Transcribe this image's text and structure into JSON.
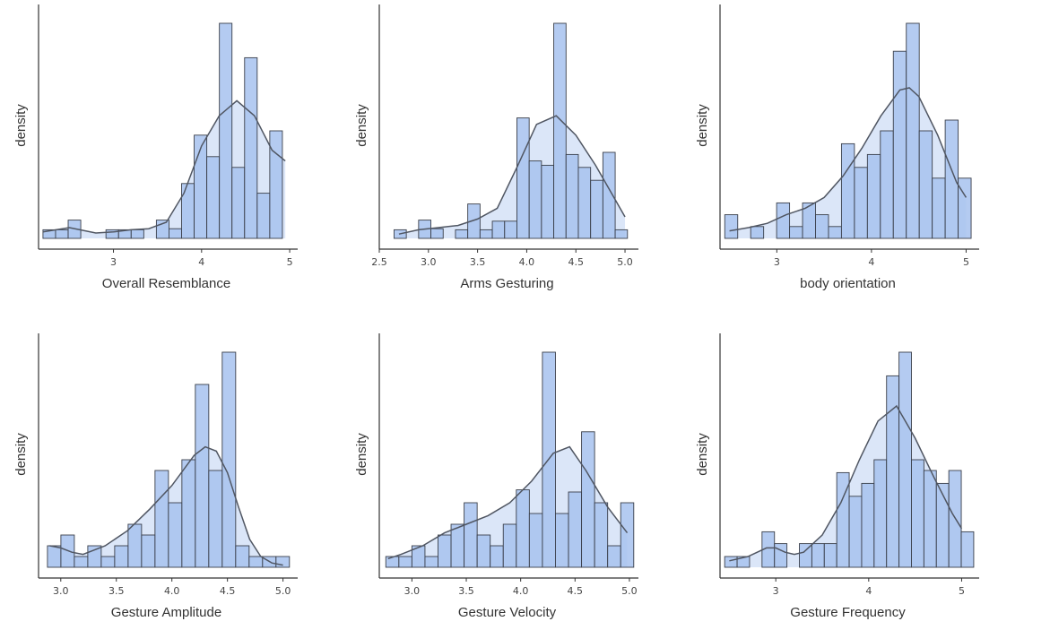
{
  "style": {
    "bar_color": "#a7c2ef",
    "bar_color_overlap": "#8fb2ea",
    "kde_fill": "#dbe6f8",
    "kde_line": "#505662",
    "axis_color": "#333333"
  },
  "chart_data": [
    {
      "type": "bar",
      "xlabel": "Overall Resemblance",
      "ylabel": "density",
      "xlim": [
        2.15,
        5.05
      ],
      "xticks": [
        3,
        4,
        5
      ],
      "tick_decimals": 0,
      "bin_width": 0.143,
      "ylim": [
        0,
        1.05
      ],
      "bins_left": [
        2.2,
        2.343,
        2.486,
        2.629,
        2.772,
        2.915,
        3.058,
        3.201,
        3.344,
        3.487,
        3.63,
        3.773,
        3.916,
        4.059,
        4.202,
        4.345,
        4.488,
        4.631,
        4.774,
        4.917
      ],
      "values": [
        0.04,
        0.04,
        0.085,
        0.0,
        0.0,
        0.04,
        0.04,
        0.04,
        0.0,
        0.085,
        0.045,
        0.255,
        0.48,
        0.38,
        1.0,
        0.33,
        0.84,
        0.21,
        0.5,
        0.0
      ],
      "kde_x": [
        2.2,
        2.5,
        2.8,
        3.0,
        3.2,
        3.4,
        3.6,
        3.8,
        4.0,
        4.2,
        4.4,
        4.6,
        4.8,
        4.95
      ],
      "kde_y": [
        0.03,
        0.05,
        0.025,
        0.03,
        0.04,
        0.045,
        0.075,
        0.21,
        0.43,
        0.57,
        0.64,
        0.57,
        0.41,
        0.36
      ]
    },
    {
      "type": "bar",
      "xlabel": "Arms Gesturing",
      "ylabel": "density",
      "xlim": [
        2.5,
        5.1
      ],
      "xticks": [
        2.5,
        3.0,
        3.5,
        4.0,
        4.5,
        5.0
      ],
      "tick_decimals": 1,
      "bin_width": 0.125,
      "ylim": [
        0,
        1.05
      ],
      "bins_left": [
        2.65,
        2.775,
        2.9,
        3.025,
        3.15,
        3.275,
        3.4,
        3.525,
        3.65,
        3.775,
        3.9,
        4.025,
        4.15,
        4.275,
        4.4,
        4.525,
        4.65,
        4.775,
        4.9
      ],
      "values": [
        0.04,
        0.0,
        0.085,
        0.045,
        0.0,
        0.04,
        0.16,
        0.04,
        0.08,
        0.08,
        0.56,
        0.36,
        0.34,
        1.0,
        0.39,
        0.33,
        0.27,
        0.4,
        0.04
      ],
      "kde_x": [
        2.7,
        2.9,
        3.1,
        3.3,
        3.5,
        3.7,
        3.9,
        4.1,
        4.3,
        4.5,
        4.7,
        4.9,
        5.0
      ],
      "kde_y": [
        0.02,
        0.04,
        0.05,
        0.06,
        0.09,
        0.14,
        0.33,
        0.53,
        0.57,
        0.48,
        0.34,
        0.18,
        0.1
      ]
    },
    {
      "type": "bar",
      "xlabel": "body orientation",
      "ylabel": "density",
      "xlim": [
        2.4,
        5.1
      ],
      "xticks": [
        3,
        4,
        5
      ],
      "tick_decimals": 0,
      "bin_width": 0.137,
      "ylim": [
        0,
        1.05
      ],
      "bins_left": [
        2.45,
        2.587,
        2.724,
        2.861,
        2.998,
        3.135,
        3.272,
        3.409,
        3.546,
        3.683,
        3.82,
        3.957,
        4.094,
        4.231,
        4.368,
        4.505,
        4.642,
        4.779,
        4.916
      ],
      "values": [
        0.11,
        0.0,
        0.055,
        0.0,
        0.165,
        0.055,
        0.165,
        0.11,
        0.055,
        0.44,
        0.33,
        0.39,
        0.5,
        0.87,
        1.0,
        0.5,
        0.28,
        0.55,
        0.28
      ],
      "kde_x": [
        2.5,
        2.7,
        2.9,
        3.1,
        3.3,
        3.5,
        3.7,
        3.9,
        4.1,
        4.3,
        4.4,
        4.5,
        4.7,
        4.9,
        5.0
      ],
      "kde_y": [
        0.035,
        0.05,
        0.07,
        0.11,
        0.14,
        0.19,
        0.29,
        0.42,
        0.57,
        0.69,
        0.7,
        0.66,
        0.48,
        0.26,
        0.19
      ]
    },
    {
      "type": "bar",
      "xlabel": "Gesture Amplitude",
      "ylabel": "density",
      "xlim": [
        2.8,
        5.1
      ],
      "xticks": [
        3.0,
        3.5,
        4.0,
        4.5,
        5.0
      ],
      "tick_decimals": 1,
      "bin_width": 0.121,
      "ylim": [
        0,
        1.05
      ],
      "bins_left": [
        2.88,
        3.001,
        3.122,
        3.243,
        3.364,
        3.485,
        3.606,
        3.727,
        3.848,
        3.969,
        4.09,
        4.211,
        4.332,
        4.453,
        4.574,
        4.695,
        4.816,
        4.937
      ],
      "values": [
        0.1,
        0.15,
        0.05,
        0.1,
        0.05,
        0.1,
        0.2,
        0.15,
        0.45,
        0.3,
        0.5,
        0.85,
        0.45,
        1.0,
        0.1,
        0.05,
        0.05,
        0.05
      ],
      "kde_x": [
        2.9,
        3.0,
        3.1,
        3.2,
        3.3,
        3.4,
        3.6,
        3.8,
        4.0,
        4.2,
        4.3,
        4.4,
        4.5,
        4.6,
        4.7,
        4.8,
        4.9,
        5.0
      ],
      "kde_y": [
        0.1,
        0.09,
        0.07,
        0.06,
        0.08,
        0.1,
        0.17,
        0.27,
        0.38,
        0.52,
        0.56,
        0.54,
        0.44,
        0.28,
        0.13,
        0.05,
        0.02,
        0.01
      ]
    },
    {
      "type": "bar",
      "xlabel": "Gesture Velocity",
      "ylabel": "density",
      "xlim": [
        2.7,
        5.05
      ],
      "xticks": [
        3.0,
        3.5,
        4.0,
        4.5,
        5.0
      ],
      "tick_decimals": 1,
      "bin_width": 0.12,
      "ylim": [
        0,
        1.05
      ],
      "bins_left": [
        2.76,
        2.88,
        3.0,
        3.12,
        3.24,
        3.36,
        3.48,
        3.6,
        3.72,
        3.84,
        3.96,
        4.08,
        4.2,
        4.32,
        4.44,
        4.56,
        4.68,
        4.8,
        4.92
      ],
      "values": [
        0.05,
        0.05,
        0.1,
        0.05,
        0.15,
        0.2,
        0.3,
        0.15,
        0.1,
        0.2,
        0.36,
        0.25,
        1.0,
        0.25,
        0.35,
        0.63,
        0.3,
        0.1,
        0.3
      ],
      "kde_x": [
        2.78,
        2.9,
        3.1,
        3.3,
        3.5,
        3.7,
        3.9,
        4.1,
        4.3,
        4.45,
        4.6,
        4.8,
        4.98
      ],
      "kde_y": [
        0.04,
        0.06,
        0.1,
        0.16,
        0.2,
        0.24,
        0.3,
        0.4,
        0.53,
        0.56,
        0.45,
        0.28,
        0.16
      ]
    },
    {
      "type": "bar",
      "xlabel": "Gesture Frequency",
      "ylabel": "density",
      "xlim": [
        2.4,
        5.15
      ],
      "xticks": [
        3,
        4,
        5
      ],
      "tick_decimals": 0,
      "bin_width": 0.134,
      "ylim": [
        0,
        1.05
      ],
      "bins_left": [
        2.45,
        2.584,
        2.718,
        2.852,
        2.986,
        3.12,
        3.254,
        3.388,
        3.522,
        3.656,
        3.79,
        3.924,
        4.058,
        4.192,
        4.326,
        4.46,
        4.594,
        4.728,
        4.862,
        4.996
      ],
      "values": [
        0.05,
        0.05,
        0.0,
        0.165,
        0.11,
        0.0,
        0.11,
        0.11,
        0.11,
        0.44,
        0.33,
        0.39,
        0.5,
        0.89,
        1.0,
        0.5,
        0.45,
        0.39,
        0.45,
        0.165
      ],
      "kde_x": [
        2.5,
        2.7,
        2.9,
        3.0,
        3.1,
        3.2,
        3.3,
        3.5,
        3.7,
        3.9,
        4.1,
        4.3,
        4.5,
        4.7,
        4.9,
        5.0
      ],
      "kde_y": [
        0.03,
        0.05,
        0.09,
        0.09,
        0.07,
        0.06,
        0.07,
        0.15,
        0.3,
        0.5,
        0.68,
        0.75,
        0.6,
        0.42,
        0.25,
        0.18
      ]
    }
  ]
}
